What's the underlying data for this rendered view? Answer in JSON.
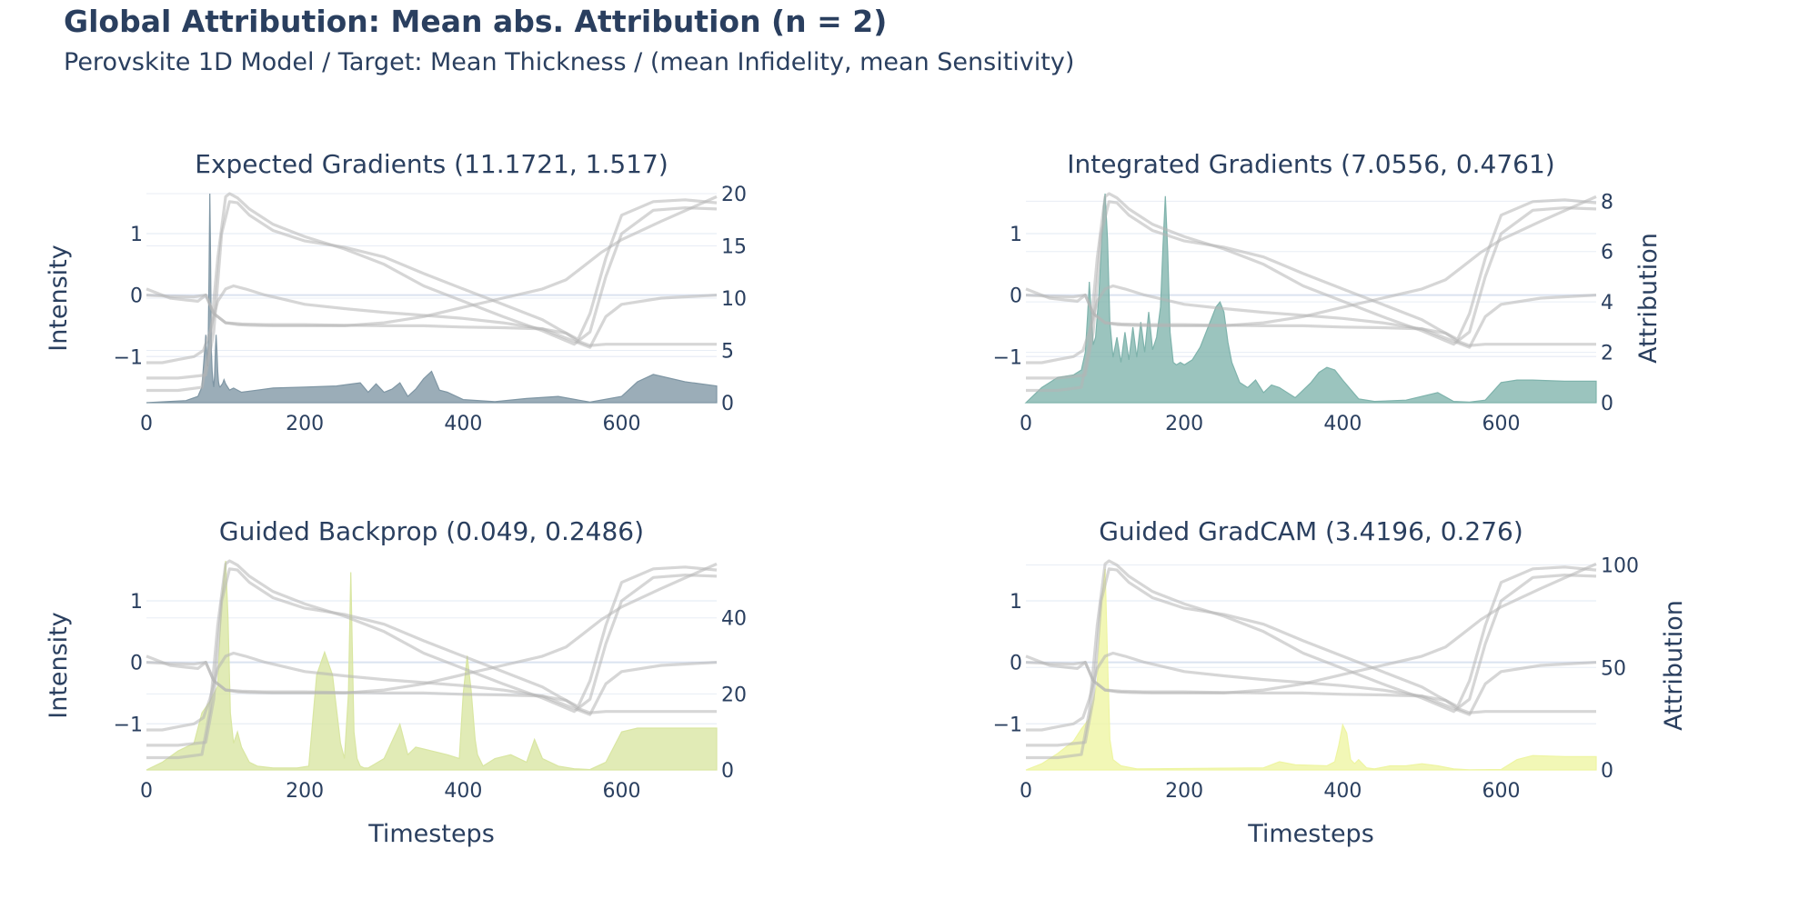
{
  "header": {
    "title": "Global Attribution: Mean abs. Attribution (n = 2)",
    "subtitle": "Perovskite 1D Model / Target: Mean Thickness / (mean Infidelity, mean Sensitivity)"
  },
  "colors": {
    "text": "#2a3f5f",
    "grid": "#e8edf5",
    "zeroline": "#dbe3f0",
    "input_line": "#b4b4b4"
  },
  "chart_data": [
    {
      "type": "area",
      "title": "Expected Gradients (11.1721, 1.517)",
      "xlabel": "",
      "ylabel": "Intensity",
      "y2label": "",
      "xlim": [
        0,
        720
      ],
      "ylim": [
        -1.75,
        1.65
      ],
      "y2lim": [
        0,
        20
      ],
      "x_ticks": [
        0,
        200,
        400,
        600
      ],
      "y_ticks": [
        -1,
        0,
        1
      ],
      "y2_ticks": [
        0,
        5,
        10,
        15,
        20
      ],
      "color": "#7f96a4",
      "attribution": {
        "x": [
          0,
          50,
          65,
          70,
          73,
          75,
          77,
          78,
          79,
          80,
          81,
          82,
          83,
          84,
          85,
          86,
          87,
          88,
          89,
          90,
          91,
          92,
          93,
          94,
          95,
          96,
          97,
          98,
          100,
          105,
          110,
          120,
          140,
          160,
          200,
          240,
          270,
          280,
          290,
          300,
          310,
          320,
          330,
          340,
          350,
          360,
          370,
          380,
          400,
          440,
          480,
          520,
          560,
          600,
          620,
          640,
          680,
          720
        ],
        "y": [
          0,
          0.2,
          0.6,
          1.5,
          4.5,
          6.5,
          3.5,
          5.5,
          12,
          20,
          14,
          5,
          3,
          2,
          1.5,
          2.5,
          5,
          6.5,
          5,
          3,
          2,
          1.6,
          1.5,
          1.6,
          1.7,
          1.8,
          2,
          2.2,
          1.8,
          1.2,
          1.4,
          1.0,
          1.2,
          1.4,
          1.5,
          1.6,
          1.9,
          1.0,
          1.8,
          1.0,
          1.3,
          1.9,
          0.6,
          1.3,
          2.3,
          3.0,
          1.2,
          1.0,
          0.3,
          0.1,
          0.4,
          0.6,
          0.05,
          0.6,
          2.0,
          2.7,
          2.0,
          1.6
        ]
      }
    },
    {
      "type": "area",
      "title": "Integrated Gradients (7.0556, 0.4761)",
      "xlabel": "",
      "ylabel": "",
      "y2label": "Attribution",
      "xlim": [
        0,
        720
      ],
      "ylim": [
        -1.75,
        1.65
      ],
      "y2lim": [
        0,
        8.3
      ],
      "x_ticks": [
        0,
        200,
        400,
        600
      ],
      "y_ticks": [
        -1,
        0,
        1
      ],
      "y2_ticks": [
        0,
        2,
        4,
        6,
        8
      ],
      "color": "#7fb3ac",
      "attribution": {
        "x": [
          0,
          20,
          40,
          60,
          70,
          75,
          78,
          80,
          82,
          85,
          88,
          92,
          95,
          98,
          100,
          103,
          106,
          110,
          115,
          120,
          125,
          130,
          135,
          140,
          145,
          150,
          155,
          160,
          165,
          170,
          173,
          176,
          179,
          182,
          186,
          190,
          195,
          200,
          210,
          220,
          230,
          240,
          245,
          250,
          255,
          260,
          270,
          280,
          290,
          300,
          310,
          320,
          340,
          360,
          370,
          380,
          390,
          400,
          420,
          440,
          480,
          520,
          540,
          560,
          580,
          600,
          620,
          640,
          680,
          720
        ],
        "y": [
          0,
          0.6,
          1.0,
          1.1,
          1.3,
          2.0,
          3.5,
          4.8,
          3.8,
          2.3,
          2.6,
          4.2,
          6.0,
          7.8,
          8.3,
          6.5,
          3.2,
          1.8,
          2.6,
          1.6,
          2.8,
          1.7,
          3.0,
          1.8,
          3.2,
          2.0,
          3.6,
          2.1,
          2.6,
          3.8,
          6.2,
          8.2,
          6.0,
          2.8,
          1.6,
          1.5,
          1.6,
          1.5,
          1.7,
          2.2,
          3.0,
          3.8,
          4.0,
          3.6,
          2.4,
          1.6,
          0.8,
          0.6,
          0.9,
          0.4,
          0.7,
          0.6,
          0.2,
          0.8,
          1.2,
          1.4,
          1.3,
          0.9,
          0.15,
          0.05,
          0.1,
          0.4,
          0.05,
          0.02,
          0.1,
          0.8,
          0.9,
          0.9,
          0.85,
          0.85
        ]
      }
    },
    {
      "type": "area",
      "title": "Guided Backprop (0.049, 0.2486)",
      "xlabel": "Timesteps",
      "ylabel": "Intensity",
      "y2label": "",
      "xlim": [
        0,
        720
      ],
      "ylim": [
        -1.75,
        1.65
      ],
      "y2lim": [
        0,
        55
      ],
      "x_ticks": [
        0,
        200,
        400,
        600
      ],
      "y_ticks": [
        -1,
        0,
        1
      ],
      "y2_ticks": [
        0,
        20,
        40
      ],
      "color": "#d9e6a2",
      "attribution": {
        "x": [
          0,
          20,
          40,
          60,
          70,
          80,
          90,
          95,
          100,
          103,
          106,
          110,
          115,
          120,
          130,
          140,
          160,
          190,
          205,
          215,
          225,
          235,
          245,
          250,
          255,
          258,
          262,
          266,
          270,
          275,
          280,
          300,
          320,
          330,
          340,
          350,
          360,
          380,
          395,
          400,
          405,
          410,
          415,
          418,
          425,
          440,
          460,
          480,
          490,
          500,
          520,
          540,
          560,
          580,
          600,
          620,
          640,
          680,
          720
        ],
        "y": [
          0,
          2,
          5,
          7,
          15,
          18,
          22,
          45,
          55,
          40,
          15,
          7,
          10,
          6,
          2,
          1,
          0.5,
          0.5,
          1,
          25,
          31,
          25,
          7,
          3,
          20,
          52,
          10,
          3,
          1,
          0.5,
          0.5,
          3,
          12,
          4,
          6,
          5.5,
          5,
          4,
          3,
          20,
          30,
          21,
          8,
          4,
          1,
          3,
          4,
          2,
          8,
          3,
          1,
          0.3,
          0.1,
          2,
          10,
          11,
          11,
          11,
          11
        ]
      }
    },
    {
      "type": "area",
      "title": "Guided GradCAM (3.4196, 0.276)",
      "xlabel": "Timesteps",
      "ylabel": "",
      "y2label": "Attribution",
      "xlim": [
        0,
        720
      ],
      "ylim": [
        -1.75,
        1.65
      ],
      "y2lim": [
        0,
        102
      ],
      "x_ticks": [
        0,
        200,
        400,
        600
      ],
      "y_ticks": [
        -1,
        0,
        1
      ],
      "y2_ticks": [
        0,
        50,
        100
      ],
      "color": "#eef5a2",
      "attribution": {
        "x": [
          0,
          20,
          40,
          60,
          70,
          80,
          90,
          95,
          100,
          103,
          106,
          110,
          120,
          140,
          300,
          320,
          340,
          380,
          390,
          395,
          400,
          405,
          410,
          415,
          420,
          430,
          440,
          460,
          480,
          500,
          520,
          540,
          560,
          600,
          620,
          640,
          680,
          720
        ],
        "y": [
          0,
          3,
          8,
          14,
          20,
          25,
          42,
          80,
          98,
          55,
          15,
          5,
          2,
          0.5,
          1,
          4,
          2.5,
          2,
          4,
          12,
          22,
          18,
          5,
          3,
          5,
          1,
          0.5,
          2,
          2,
          3,
          2,
          0.5,
          0.1,
          0.2,
          5,
          7,
          6.5,
          6.5
        ]
      }
    }
  ],
  "input_series": [
    {
      "name": "",
      "x": [
        0,
        40,
        75,
        85,
        95,
        105,
        115,
        130,
        160,
        200,
        250,
        300,
        350,
        400,
        450,
        500,
        520,
        545,
        560,
        580,
        600,
        640,
        680,
        720
      ],
      "y": [
        -1.35,
        -1.35,
        -1.3,
        -0.6,
        1.0,
        1.52,
        1.5,
        1.3,
        1.05,
        0.88,
        0.78,
        0.62,
        0.35,
        0.1,
        -0.15,
        -0.4,
        -0.55,
        -0.72,
        -0.3,
        0.6,
        1.3,
        1.52,
        1.55,
        1.5
      ]
    },
    {
      "name": "",
      "x": [
        0,
        40,
        70,
        80,
        90,
        100,
        105,
        115,
        130,
        160,
        200,
        250,
        300,
        350,
        400,
        450,
        500,
        540,
        560,
        580,
        600,
        640,
        680,
        720
      ],
      "y": [
        -1.55,
        -1.55,
        -1.5,
        -0.8,
        0.6,
        1.6,
        1.65,
        1.58,
        1.4,
        1.15,
        0.95,
        0.75,
        0.5,
        0.15,
        -0.1,
        -0.35,
        -0.58,
        -0.8,
        -0.6,
        0.3,
        1.0,
        1.38,
        1.42,
        1.4
      ]
    },
    {
      "name": "",
      "x": [
        0,
        10,
        30,
        50,
        65,
        75,
        85,
        100,
        115,
        130,
        160,
        200,
        250,
        300,
        350,
        400,
        450,
        500,
        530,
        550,
        575,
        600,
        650,
        720
      ],
      "y": [
        0.1,
        0.05,
        -0.05,
        -0.08,
        -0.1,
        0.0,
        -0.3,
        -0.45,
        -0.48,
        -0.49,
        -0.5,
        -0.5,
        -0.5,
        -0.45,
        -0.35,
        -0.2,
        -0.05,
        0.1,
        0.25,
        0.45,
        0.7,
        0.9,
        1.2,
        1.6
      ]
    },
    {
      "name": "",
      "x": [
        0,
        20,
        40,
        60,
        72,
        80,
        90,
        100,
        110,
        125,
        150,
        200,
        250,
        300,
        350,
        400,
        450,
        500,
        530,
        550,
        560,
        580,
        600,
        650,
        720
      ],
      "y": [
        -1.1,
        -1.1,
        -1.05,
        -1.0,
        -0.9,
        -0.6,
        -0.1,
        0.1,
        0.15,
        0.1,
        0.0,
        -0.15,
        -0.22,
        -0.28,
        -0.33,
        -0.38,
        -0.45,
        -0.55,
        -0.7,
        -0.8,
        -0.85,
        -0.35,
        -0.15,
        -0.05,
        0.0
      ]
    },
    {
      "name": "",
      "x": [
        0,
        30,
        60,
        75,
        85,
        100,
        120,
        150,
        200,
        250,
        300,
        350,
        400,
        450,
        500,
        530,
        545,
        560,
        580,
        620,
        680,
        720
      ],
      "y": [
        0.0,
        -0.02,
        -0.03,
        0.0,
        -0.3,
        -0.45,
        -0.47,
        -0.48,
        -0.48,
        -0.49,
        -0.5,
        -0.5,
        -0.52,
        -0.53,
        -0.55,
        -0.62,
        -0.75,
        -0.82,
        -0.8,
        -0.8,
        -0.8,
        -0.8
      ]
    }
  ]
}
